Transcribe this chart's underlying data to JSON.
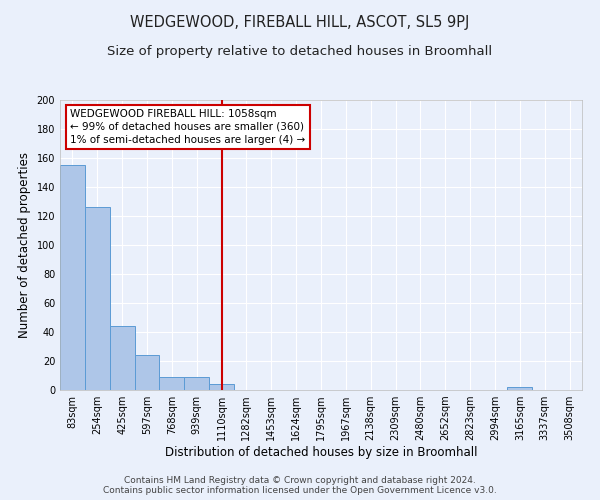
{
  "title": "WEDGEWOOD, FIREBALL HILL, ASCOT, SL5 9PJ",
  "subtitle": "Size of property relative to detached houses in Broomhall",
  "xlabel": "Distribution of detached houses by size in Broomhall",
  "ylabel": "Number of detached properties",
  "footnote1": "Contains HM Land Registry data © Crown copyright and database right 2024.",
  "footnote2": "Contains public sector information licensed under the Open Government Licence v3.0.",
  "categories": [
    "83sqm",
    "254sqm",
    "425sqm",
    "597sqm",
    "768sqm",
    "939sqm",
    "1110sqm",
    "1282sqm",
    "1453sqm",
    "1624sqm",
    "1795sqm",
    "1967sqm",
    "2138sqm",
    "2309sqm",
    "2480sqm",
    "2652sqm",
    "2823sqm",
    "2994sqm",
    "3165sqm",
    "3337sqm",
    "3508sqm"
  ],
  "values": [
    155,
    126,
    44,
    24,
    9,
    9,
    4,
    0,
    0,
    0,
    0,
    0,
    0,
    0,
    0,
    0,
    0,
    0,
    2,
    0,
    0
  ],
  "bar_color": "#aec6e8",
  "bar_edge_color": "#5b9bd5",
  "bar_linewidth": 0.7,
  "red_line_index": 6,
  "red_line_color": "#cc0000",
  "annotation_text": "WEDGEWOOD FIREBALL HILL: 1058sqm\n← 99% of detached houses are smaller (360)\n1% of semi-detached houses are larger (4) →",
  "annotation_box_color": "#ffffff",
  "annotation_box_edge": "#cc0000",
  "ylim": [
    0,
    200
  ],
  "yticks": [
    0,
    20,
    40,
    60,
    80,
    100,
    120,
    140,
    160,
    180,
    200
  ],
  "bg_color": "#eaf0fb",
  "plot_bg_color": "#eaf0fb",
  "title_fontsize": 10.5,
  "subtitle_fontsize": 9.5,
  "ylabel_fontsize": 8.5,
  "xlabel_fontsize": 8.5,
  "tick_fontsize": 7,
  "annotation_fontsize": 7.5,
  "footnote_fontsize": 6.5,
  "grid_color": "#ffffff",
  "grid_linewidth": 0.8
}
